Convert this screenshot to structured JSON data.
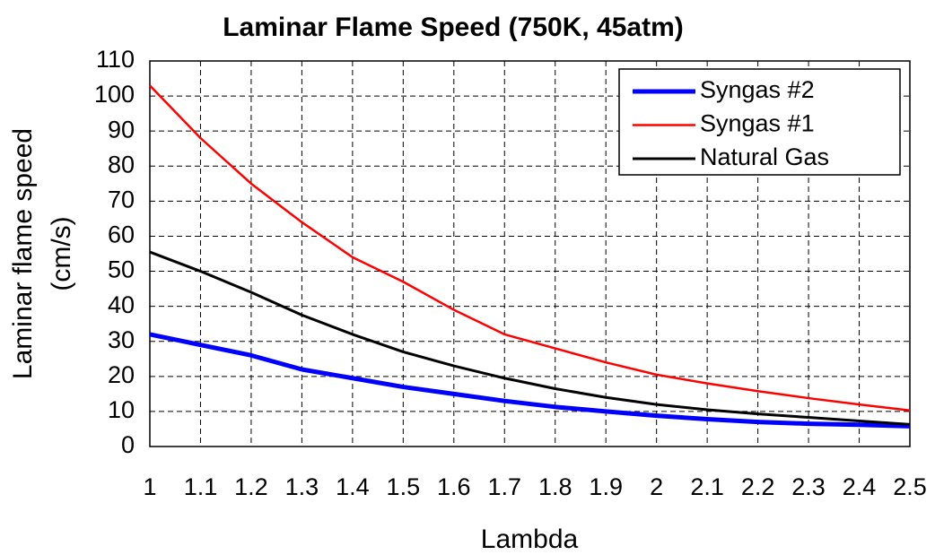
{
  "chart_data": {
    "type": "line",
    "title": "Laminar Flame Speed (750K, 45atm)",
    "xlabel": "Lambda",
    "ylabel": [
      "Laminar flame speed",
      "(cm/s)"
    ],
    "x": [
      1,
      1.1,
      1.2,
      1.3,
      1.4,
      1.5,
      1.6,
      1.7,
      1.8,
      1.9,
      2,
      2.1,
      2.2,
      2.3,
      2.4,
      2.5
    ],
    "series": [
      {
        "name": "Syngas #2",
        "color": "#0000ff",
        "values": [
          32,
          29,
          26,
          22,
          19.5,
          17,
          15,
          13,
          11.3,
          10,
          8.8,
          7.8,
          7,
          6.5,
          6.2,
          5.8
        ]
      },
      {
        "name": "Syngas #1",
        "color": "#ff0000",
        "values": [
          103,
          88,
          75,
          64,
          54,
          47,
          39,
          32,
          28,
          24,
          20.5,
          18,
          15.8,
          13.8,
          12,
          10.3
        ]
      },
      {
        "name": "Natural Gas",
        "color": "#000000",
        "values": [
          55.5,
          50,
          44,
          37.5,
          32,
          27,
          23,
          19.5,
          16.5,
          14,
          12,
          10.5,
          9.3,
          8.3,
          7.3,
          6.3
        ]
      }
    ],
    "xlim": [
      1,
      2.5
    ],
    "xticks": [
      1,
      1.1,
      1.2,
      1.3,
      1.4,
      1.5,
      1.6,
      1.7,
      1.8,
      1.9,
      2,
      2.1,
      2.2,
      2.3,
      2.4,
      2.5
    ],
    "ylim": [
      0,
      110
    ],
    "yticks": [
      0,
      10,
      20,
      30,
      40,
      50,
      60,
      70,
      80,
      90,
      100,
      110
    ],
    "grid": true,
    "legend": "upper right"
  }
}
